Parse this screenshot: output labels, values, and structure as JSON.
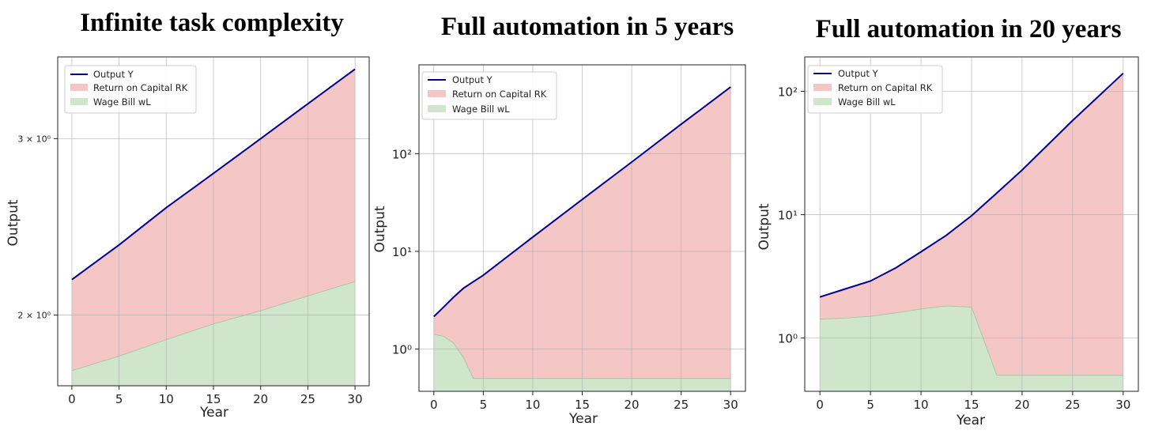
{
  "chart_data": [
    {
      "type": "area",
      "title": "Infinite task complexity",
      "xlabel": "Year",
      "ylabel": "Output",
      "xlim": [
        -1.5,
        31.5
      ],
      "ylim": [
        1.7,
        3.62
      ],
      "yscale": "log",
      "grid": true,
      "legend_position": "top-left",
      "x_ticks": [
        "0",
        "5",
        "10",
        "15",
        "20",
        "25",
        "30"
      ],
      "y_ticks": [
        {
          "value": 2,
          "label": "2 × 10⁰"
        },
        {
          "value": 3,
          "label": "3 × 10⁰"
        }
      ],
      "x": [
        0,
        5,
        10,
        15,
        20,
        25,
        30
      ],
      "series": [
        {
          "name": "Output Y",
          "kind": "line",
          "color": "#00008b",
          "values": [
            2.17,
            2.35,
            2.56,
            2.77,
            3.0,
            3.25,
            3.52
          ]
        },
        {
          "name": "Return on Capital RK",
          "kind": "fill_between",
          "color": "#f4c6c6",
          "lower": "Wage Bill wL",
          "upper": "Output Y"
        },
        {
          "name": "Wage Bill wL",
          "kind": "fill_to_bottom",
          "color": "#cfe6cc",
          "edge": "#a8c8a0",
          "values": [
            1.76,
            1.82,
            1.89,
            1.96,
            2.02,
            2.09,
            2.16
          ]
        }
      ]
    },
    {
      "type": "area",
      "title": "Full automation in 5 years",
      "xlabel": "Year",
      "ylabel": "Output",
      "xlim": [
        -1.5,
        31.5
      ],
      "ylim": [
        0.37,
        810
      ],
      "yscale": "log",
      "grid": true,
      "legend_position": "top-left",
      "x_ticks": [
        "0",
        "5",
        "10",
        "15",
        "20",
        "25",
        "30"
      ],
      "y_ticks": [
        {
          "value": 1,
          "label": "10⁰"
        },
        {
          "value": 10,
          "label": "10¹"
        },
        {
          "value": 100,
          "label": "10²"
        }
      ],
      "x": [
        0,
        1,
        2,
        3,
        4,
        5,
        10,
        15,
        20,
        25,
        30
      ],
      "series": [
        {
          "name": "Output Y",
          "kind": "line",
          "color": "#00008b",
          "values": [
            2.15,
            2.7,
            3.4,
            4.2,
            4.9,
            5.7,
            14.0,
            34.0,
            82.0,
            200.0,
            480.0
          ]
        },
        {
          "name": "Return on Capital RK",
          "kind": "fill_between",
          "color": "#f4c6c6",
          "lower": "Wage Bill wL",
          "upper": "Output Y"
        },
        {
          "name": "Wage Bill wL",
          "kind": "fill_to_bottom",
          "color": "#cfe6cc",
          "edge": "#a8c8a0",
          "values": [
            1.42,
            1.35,
            1.15,
            0.82,
            0.5,
            0.5,
            0.5,
            0.5,
            0.5,
            0.5,
            0.5
          ]
        }
      ]
    },
    {
      "type": "area",
      "title": "Full automation in 20 years",
      "xlabel": "Year",
      "ylabel": "Output",
      "xlim": [
        -1.5,
        31.5
      ],
      "ylim": [
        0.37,
        190
      ],
      "yscale": "log",
      "grid": true,
      "legend_position": "top-left",
      "x_ticks": [
        "0",
        "5",
        "10",
        "15",
        "20",
        "25",
        "30"
      ],
      "y_ticks": [
        {
          "value": 1,
          "label": "10⁰"
        },
        {
          "value": 10,
          "label": "10¹"
        },
        {
          "value": 100,
          "label": "10²"
        }
      ],
      "x": [
        0,
        2.5,
        5,
        7.5,
        10,
        12.5,
        15,
        17.5,
        20,
        25,
        30
      ],
      "series": [
        {
          "name": "Output Y",
          "kind": "line",
          "color": "#00008b",
          "values": [
            2.15,
            2.5,
            2.9,
            3.7,
            5.0,
            6.8,
            9.8,
            15.0,
            23.0,
            58.0,
            140.0
          ]
        },
        {
          "name": "Return on Capital RK",
          "kind": "fill_between",
          "color": "#f4c6c6",
          "lower": "Wage Bill wL",
          "upper": "Output Y"
        },
        {
          "name": "Wage Bill wL",
          "kind": "fill_to_bottom",
          "color": "#cfe6cc",
          "edge": "#a8c8a0",
          "values": [
            1.42,
            1.45,
            1.5,
            1.6,
            1.72,
            1.82,
            1.78,
            0.5,
            0.5,
            0.5,
            0.5
          ]
        }
      ]
    }
  ]
}
